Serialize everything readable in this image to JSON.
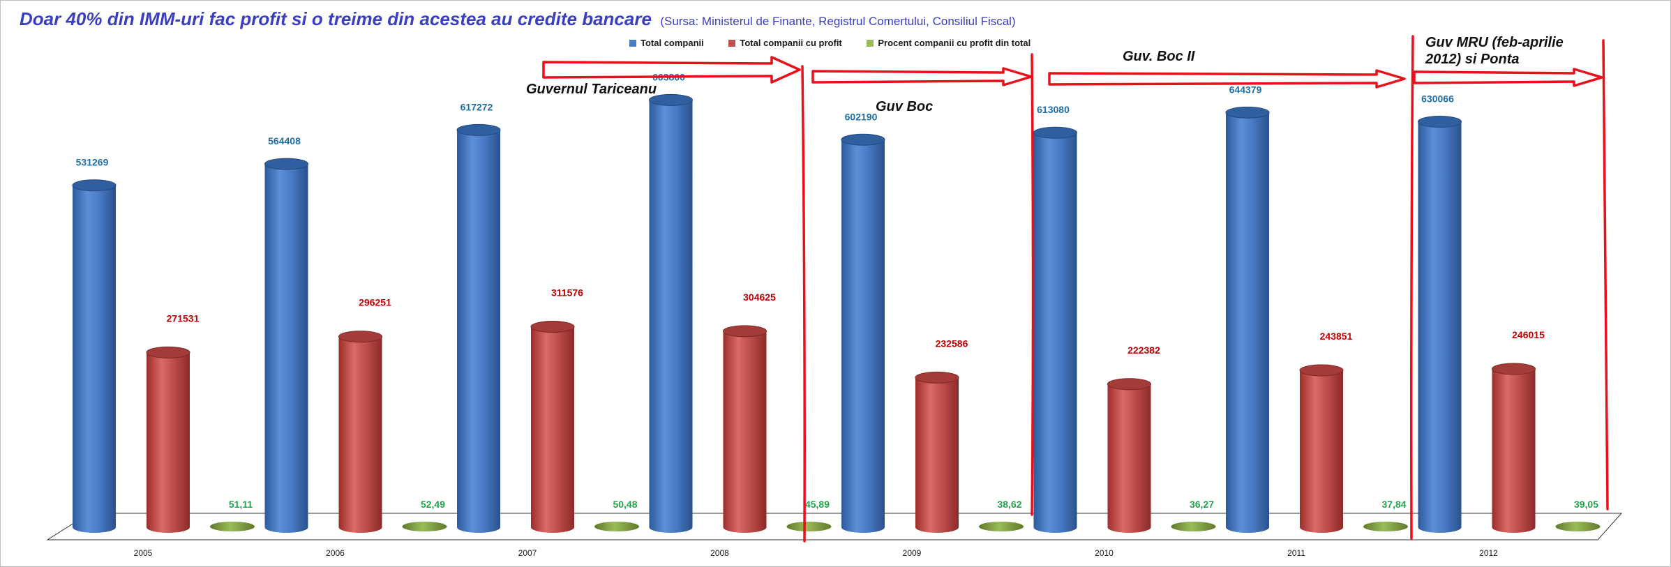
{
  "chart_data": {
    "type": "bar",
    "style": "3d-cylinder",
    "title": "Doar 40% din IMM-uri fac profit si o treime din acestea au credite bancare",
    "subtitle": "(Sursa: Ministerul de Finante, Registrul Comertului, Consiliul Fiscal)",
    "xlabel": "",
    "ylabel": "",
    "ylim": [
      0,
      700000
    ],
    "grid": false,
    "legend_position": "top",
    "categories": [
      "2005",
      "2006",
      "2007",
      "2008",
      "2009",
      "2010",
      "2011",
      "2012"
    ],
    "series": [
      {
        "name": "Total companii",
        "color": "#4a7cc7",
        "values": [
          531269,
          564408,
          617272,
          663860,
          602190,
          613080,
          644379,
          630066
        ],
        "labels": [
          "531269",
          "564408",
          "617272",
          "663860",
          "602190",
          "613080",
          "644379",
          "630066"
        ]
      },
      {
        "name": "Total companii cu profit",
        "color": "#c0504d",
        "values": [
          271531,
          296251,
          311576,
          304625,
          232586,
          222382,
          243851,
          246015
        ],
        "labels": [
          "271531",
          "296251",
          "311576",
          "304625",
          "232586",
          "222382",
          "243851",
          "246015"
        ]
      },
      {
        "name": "Procent companii cu profit din total",
        "color": "#7f9a3a",
        "values": [
          51.11,
          52.49,
          50.48,
          45.89,
          38.62,
          36.27,
          37.84,
          39.05
        ],
        "labels": [
          "51,11",
          "52,49",
          "50,48",
          "45,89",
          "38,62",
          "36,27",
          "37,84",
          "39,05"
        ]
      }
    ],
    "annotations": [
      {
        "text": "Guvernul Tariceanu"
      },
      {
        "text": "Guv Boc"
      },
      {
        "text": "Guv. Boc II"
      },
      {
        "text": "Guv MRU (feb-aprilie",
        "text2": "2012) si Ponta"
      }
    ],
    "annotation_color": "#e8101a"
  }
}
